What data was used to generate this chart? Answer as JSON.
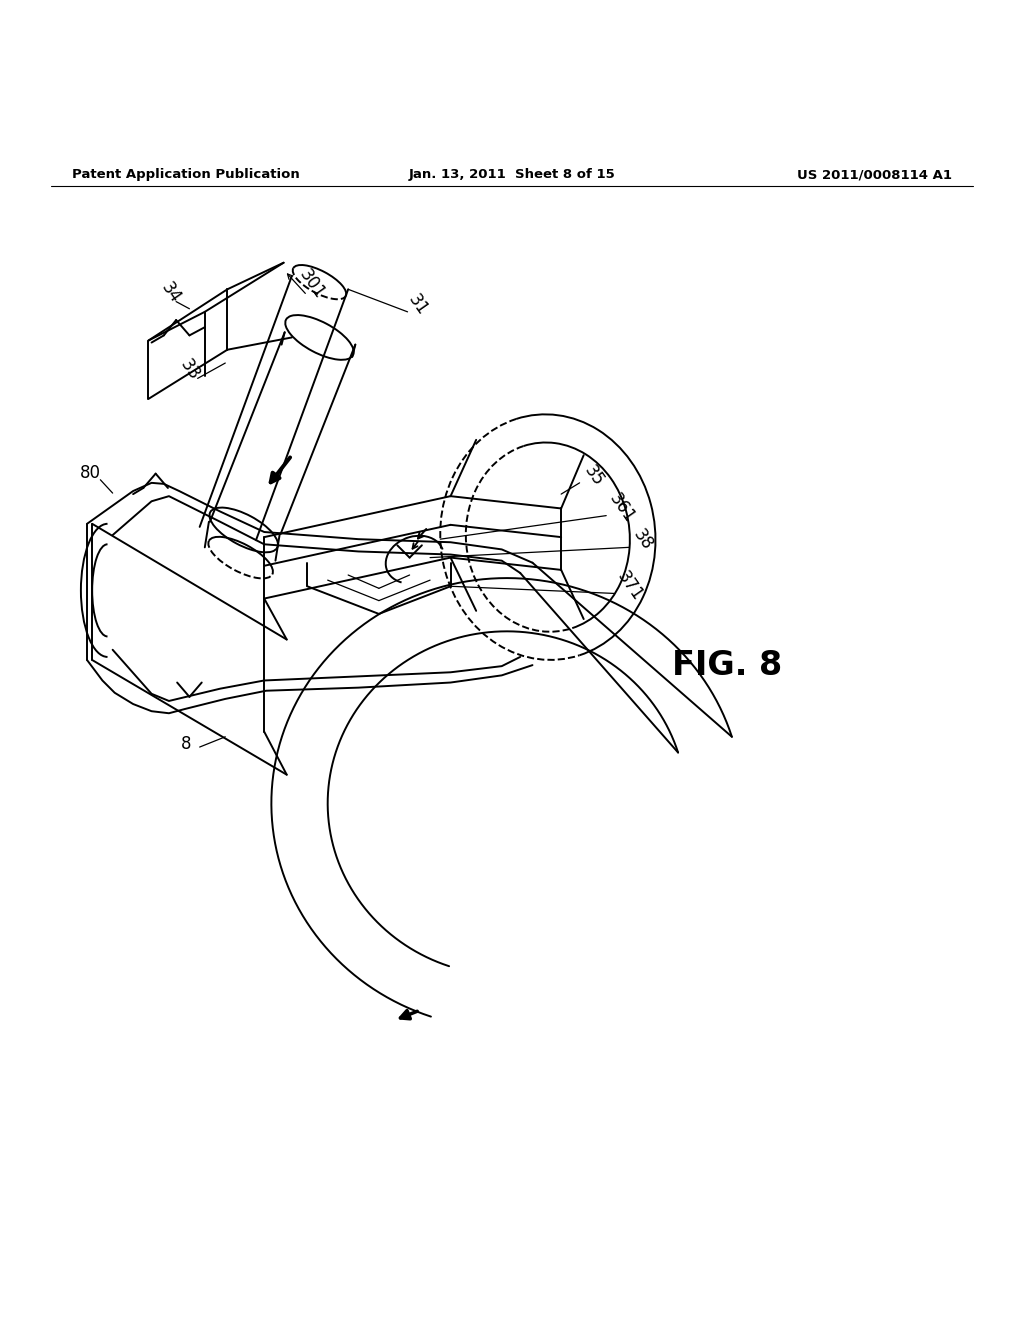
{
  "bg_color": "#ffffff",
  "header_left": "Patent Application Publication",
  "header_center": "Jan. 13, 2011  Sheet 8 of 15",
  "header_right": "US 2011/0008114 A1",
  "fig_label": "FIG. 8",
  "label_fontsize": 12,
  "header_fontsize": 9.5,
  "fig_label_fontsize": 24,
  "line_color": "#000000",
  "line_width": 1.4
}
